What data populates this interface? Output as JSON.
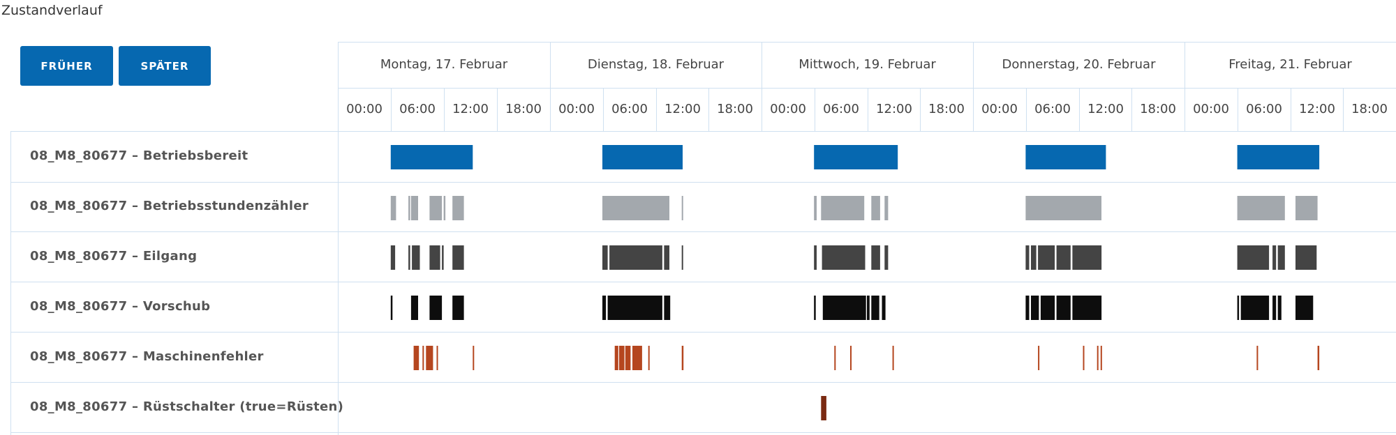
{
  "title": "Zustandverlauf",
  "buttons": {
    "earlier": "FRÜHER",
    "later": "SPÄTER"
  },
  "days": [
    "Montag, 17. Februar",
    "Dienstag, 18. Februar",
    "Mittwoch, 19. Februar",
    "Donnerstag, 20. Februar",
    "Freitag, 21. Februar"
  ],
  "hours": [
    "00:00",
    "06:00",
    "12:00",
    "18:00"
  ],
  "rows": [
    {
      "label": "08_M8_80677 – Betriebsbereit",
      "color": "#0668b0"
    },
    {
      "label": "08_M8_80677 – Betriebsstundenzähler",
      "color": "#a3a8ad"
    },
    {
      "label": "08_M8_80677 – Eilgang",
      "color": "#444444"
    },
    {
      "label": "08_M8_80677 – Vorschub",
      "color": "#0d0d0d"
    },
    {
      "label": "08_M8_80677 – Maschinenfehler",
      "color": "#b5461f"
    },
    {
      "label": "08_M8_80677 – Rüstschalter (true=Rüsten)",
      "color": "#7a2a12"
    }
  ],
  "segments": [
    [
      [
        0,
        6.0,
        15.3
      ],
      [
        1,
        6.0,
        15.1
      ],
      [
        2,
        6.0,
        15.5
      ],
      [
        3,
        6.0,
        15.1
      ],
      [
        4,
        6.0,
        15.3
      ]
    ],
    [
      [
        0,
        6.0,
        6.6
      ],
      [
        0,
        8.0,
        8.2
      ],
      [
        0,
        8.3,
        9.1
      ],
      [
        0,
        10.4,
        11.8
      ],
      [
        0,
        12.0,
        12.2
      ],
      [
        0,
        13.0,
        14.3
      ],
      [
        1,
        6.0,
        13.6
      ],
      [
        1,
        15.0,
        15.1
      ],
      [
        2,
        6.0,
        6.3
      ],
      [
        2,
        6.8,
        11.7
      ],
      [
        2,
        12.5,
        13.5
      ],
      [
        2,
        14.0,
        14.4
      ],
      [
        3,
        6.0,
        14.6
      ],
      [
        4,
        6.0,
        11.4
      ],
      [
        4,
        12.6,
        15.1
      ]
    ],
    [
      [
        0,
        6.0,
        6.5
      ],
      [
        0,
        8.0,
        8.2
      ],
      [
        0,
        8.4,
        9.3
      ],
      [
        0,
        10.4,
        11.6
      ],
      [
        0,
        11.8,
        12.0
      ],
      [
        0,
        13.0,
        14.3
      ],
      [
        1,
        6.0,
        6.6
      ],
      [
        1,
        6.8,
        12.8
      ],
      [
        1,
        13.0,
        13.6
      ],
      [
        1,
        15.0,
        15.1
      ],
      [
        2,
        6.0,
        6.3
      ],
      [
        2,
        6.9,
        11.8
      ],
      [
        2,
        12.5,
        13.5
      ],
      [
        2,
        14.0,
        14.4
      ],
      [
        3,
        6.0,
        6.4
      ],
      [
        3,
        6.6,
        7.2
      ],
      [
        3,
        7.4,
        9.3
      ],
      [
        3,
        9.5,
        11.1
      ],
      [
        3,
        11.3,
        14.6
      ],
      [
        4,
        6.0,
        9.6
      ],
      [
        4,
        10.0,
        10.4
      ],
      [
        4,
        10.6,
        11.4
      ],
      [
        4,
        12.6,
        15.0
      ]
    ],
    [
      [
        0,
        6.0,
        6.2
      ],
      [
        0,
        8.3,
        9.1
      ],
      [
        0,
        10.4,
        11.8
      ],
      [
        0,
        13.0,
        14.3
      ],
      [
        1,
        6.0,
        6.4
      ],
      [
        1,
        6.6,
        12.8
      ],
      [
        1,
        13.0,
        13.7
      ],
      [
        2,
        6.0,
        6.2
      ],
      [
        2,
        7.0,
        11.9
      ],
      [
        2,
        12.0,
        12.3
      ],
      [
        2,
        12.5,
        13.4
      ],
      [
        2,
        13.7,
        14.1
      ],
      [
        3,
        6.0,
        6.4
      ],
      [
        3,
        6.6,
        7.5
      ],
      [
        3,
        7.7,
        9.3
      ],
      [
        3,
        9.5,
        11.1
      ],
      [
        3,
        11.3,
        14.6
      ],
      [
        4,
        6.0,
        6.2
      ],
      [
        4,
        6.4,
        9.6
      ],
      [
        4,
        10.0,
        10.4
      ],
      [
        4,
        10.6,
        11.0
      ],
      [
        4,
        12.6,
        14.6
      ]
    ],
    [
      [
        0,
        8.6,
        9.2
      ],
      [
        0,
        9.6,
        9.7
      ],
      [
        0,
        10.0,
        10.8
      ],
      [
        0,
        11.2,
        11.3
      ],
      [
        0,
        15.3,
        15.4
      ],
      [
        1,
        7.4,
        7.8
      ],
      [
        1,
        7.9,
        8.5
      ],
      [
        1,
        8.6,
        9.2
      ],
      [
        1,
        9.4,
        10.5
      ],
      [
        1,
        11.2,
        11.3
      ],
      [
        1,
        15.0,
        15.2
      ],
      [
        2,
        8.3,
        8.4
      ],
      [
        2,
        10.1,
        10.2
      ],
      [
        2,
        14.9,
        15.0
      ],
      [
        3,
        7.4,
        7.5
      ],
      [
        3,
        12.5,
        12.6
      ],
      [
        3,
        14.1,
        14.2
      ],
      [
        3,
        14.5,
        14.6
      ],
      [
        4,
        8.2,
        8.3
      ],
      [
        4,
        15.1,
        15.3
      ]
    ],
    [
      [
        2,
        6.8,
        7.4
      ]
    ]
  ]
}
